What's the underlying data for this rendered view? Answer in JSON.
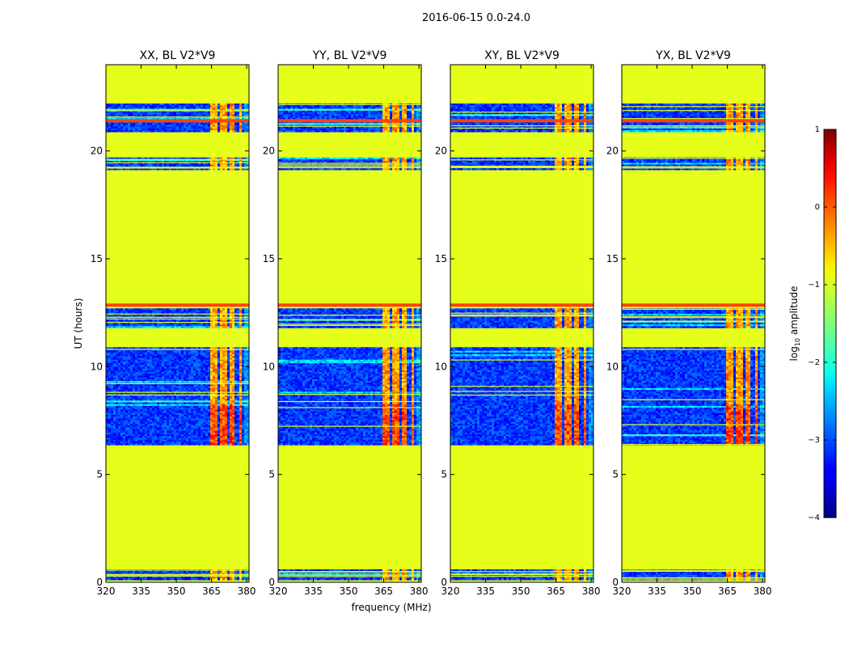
{
  "chart_data": {
    "type": "heatmap",
    "title": "2016-06-15 0.0-24.0",
    "xlabel": "frequency (MHz)",
    "ylabel": "UT (hours)",
    "xlim": [
      320,
      381
    ],
    "ylim": [
      0,
      24
    ],
    "x_ticks": [
      "320",
      "335",
      "350",
      "365",
      "380"
    ],
    "x_tick_values": [
      320,
      335,
      350,
      365,
      380
    ],
    "y_ticks": [
      "0",
      "5",
      "10",
      "15",
      "20"
    ],
    "y_tick_values": [
      0,
      5,
      10,
      15,
      20
    ],
    "panels": [
      {
        "title": "XX, BL V2*V9",
        "polarization": "XX"
      },
      {
        "title": "YY, BL V2*V9",
        "polarization": "YY"
      },
      {
        "title": "XY, BL V2*V9",
        "polarization": "XY"
      },
      {
        "title": "YX, BL V2*V9",
        "polarization": "YX"
      }
    ],
    "flagged_value": -1.0,
    "data_blocks_hours": [
      [
        0.15,
        0.6
      ],
      [
        6.4,
        10.9
      ],
      [
        11.8,
        12.7
      ],
      [
        19.2,
        19.7
      ],
      [
        20.9,
        22.2
      ]
    ],
    "flag_lines_hours": [
      12.85,
      21.4
    ],
    "rfi_columns_mhz": [
      [
        363.5,
        367.5
      ],
      [
        368.5,
        371.5
      ],
      [
        372.5,
        374.0
      ],
      [
        376.0,
        377.0
      ]
    ],
    "colorbar": {
      "label": "log10 amplitude",
      "label_main": "log",
      "label_sub": "10",
      "label_suffix": " amplitude",
      "range": [
        -4,
        1
      ],
      "ticks": [
        "1",
        "0",
        "−1",
        "−2",
        "−3",
        "−4"
      ],
      "tick_values": [
        1,
        0,
        -1,
        -2,
        -3,
        -4
      ],
      "colormap": "jet"
    }
  }
}
